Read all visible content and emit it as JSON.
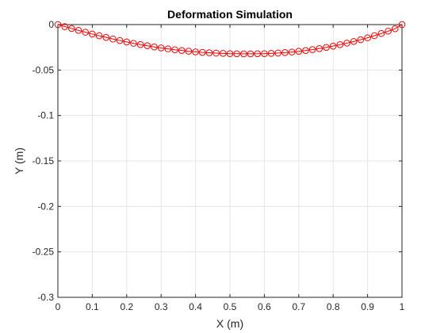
{
  "chart_data": {
    "type": "line",
    "title": "Deformation Simulation",
    "xlabel": "X (m)",
    "ylabel": "Y (m)",
    "xlim": [
      0,
      1
    ],
    "ylim": [
      -0.3,
      0
    ],
    "grid": true,
    "x_ticks": [
      0,
      0.1,
      0.2,
      0.3,
      0.4,
      0.5,
      0.6,
      0.7,
      0.8,
      0.9,
      1
    ],
    "x_tick_labels": [
      "0",
      "0.1",
      "0.2",
      "0.3",
      "0.4",
      "0.5",
      "0.6",
      "0.7",
      "0.8",
      "0.9",
      "1"
    ],
    "y_ticks": [
      0,
      -0.05,
      -0.1,
      -0.15,
      -0.2,
      -0.25,
      -0.3
    ],
    "y_tick_labels": [
      "0",
      "-0.05",
      "-0.1",
      "-0.15",
      "-0.2",
      "-0.25",
      "-0.3"
    ],
    "series": [
      {
        "color": "#ff0000",
        "marker": "circle",
        "line_style": "solid",
        "x": [
          0,
          0.02,
          0.04,
          0.06,
          0.08,
          0.1,
          0.12,
          0.14,
          0.16,
          0.18,
          0.2,
          0.22,
          0.24,
          0.26,
          0.28,
          0.3,
          0.32,
          0.34,
          0.36,
          0.38,
          0.4,
          0.42,
          0.44,
          0.46,
          0.48,
          0.5,
          0.52,
          0.54,
          0.56,
          0.58,
          0.6,
          0.62,
          0.64,
          0.66,
          0.68,
          0.7,
          0.72,
          0.74,
          0.76,
          0.78,
          0.8,
          0.82,
          0.84,
          0.86,
          0.88,
          0.9,
          0.92,
          0.94,
          0.96,
          0.98,
          1
        ],
        "y": [
          0,
          -0.0022,
          -0.0043,
          -0.0064,
          -0.0084,
          -0.0104,
          -0.0123,
          -0.0141,
          -0.0159,
          -0.0175,
          -0.0191,
          -0.0206,
          -0.022,
          -0.0233,
          -0.0246,
          -0.0257,
          -0.0267,
          -0.0277,
          -0.0285,
          -0.0293,
          -0.03,
          -0.0306,
          -0.031,
          -0.0314,
          -0.0317,
          -0.032,
          -0.0321,
          -0.0322,
          -0.0322,
          -0.0321,
          -0.032,
          -0.0317,
          -0.0313,
          -0.0308,
          -0.0302,
          -0.0294,
          -0.0285,
          -0.0275,
          -0.0264,
          -0.0251,
          -0.0237,
          -0.0221,
          -0.0204,
          -0.0186,
          -0.0166,
          -0.0145,
          -0.0122,
          -0.0098,
          -0.0072,
          -0.0045,
          0
        ]
      }
    ]
  }
}
